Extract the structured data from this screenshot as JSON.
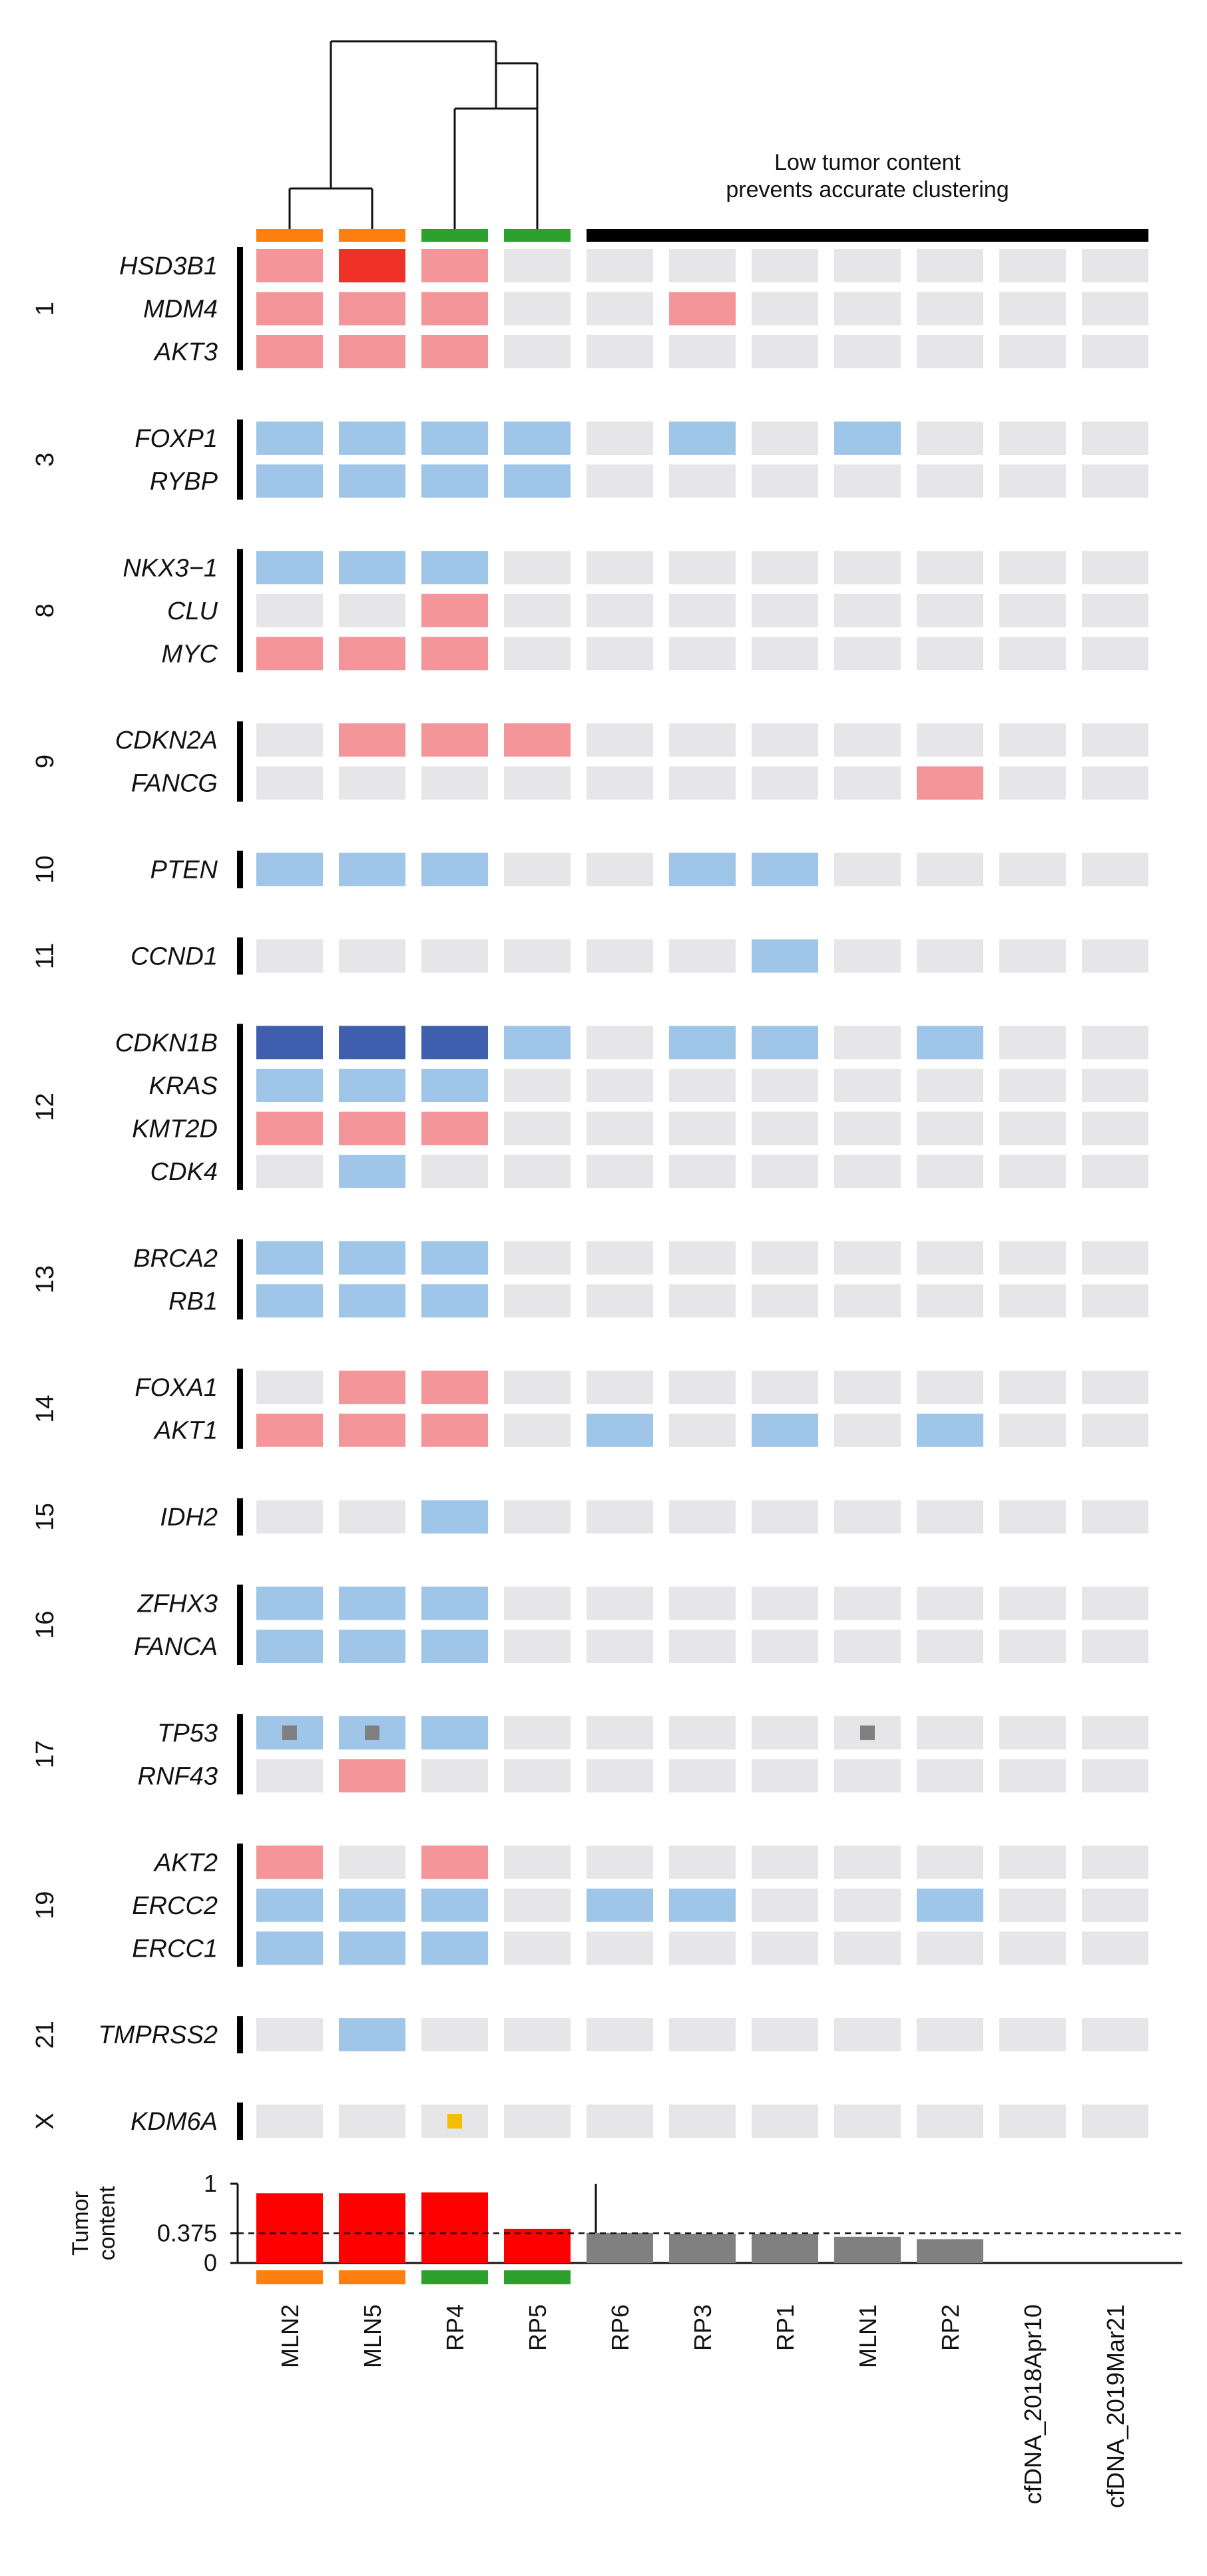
{
  "chart_data": {
    "type": "heatmap",
    "samples": [
      "MLN2",
      "MLN5",
      "RP4",
      "RP5",
      "RP6",
      "RP3",
      "RP1",
      "MLN1",
      "RP2",
      "cfDNA_2018Apr10",
      "cfDNA_2019Mar21"
    ],
    "cluster_groups": [
      {
        "samples": [
          "MLN2",
          "MLN5"
        ],
        "color": "#ff7f0e"
      },
      {
        "samples": [
          "RP4",
          "RP5"
        ],
        "color": "#2ca02c"
      }
    ],
    "low_tumor_note": "Low tumor content\nprevents accurate clustering",
    "dendrogram": "((MLN2,MLN5),(RP4,RP5))",
    "colors": {
      "none": "#e6e6e8",
      "gain": "#f4959a",
      "amplification": "#ef3128",
      "loss": "#9fc5e8",
      "deep_deletion": "#3f5fae",
      "truncating_mutation": "#808080",
      "missense_mutation": "#f7bb00",
      "tumor_content_bar": "#ff0000",
      "low_tumor_bar": "#808080"
    },
    "chromosomes": [
      {
        "chrom": "1",
        "genes": [
          {
            "gene": "HSD3B1",
            "states": [
              "gain",
              "amplification",
              "gain",
              "none",
              "none",
              "none",
              "none",
              "none",
              "none",
              "none",
              "none"
            ]
          },
          {
            "gene": "MDM4",
            "states": [
              "gain",
              "gain",
              "gain",
              "none",
              "none",
              "gain",
              "none",
              "none",
              "none",
              "none",
              "none"
            ]
          },
          {
            "gene": "AKT3",
            "states": [
              "gain",
              "gain",
              "gain",
              "none",
              "none",
              "none",
              "none",
              "none",
              "none",
              "none",
              "none"
            ]
          }
        ]
      },
      {
        "chrom": "3",
        "genes": [
          {
            "gene": "FOXP1",
            "states": [
              "loss",
              "loss",
              "loss",
              "loss",
              "none",
              "loss",
              "none",
              "loss",
              "none",
              "none",
              "none"
            ]
          },
          {
            "gene": "RYBP",
            "states": [
              "loss",
              "loss",
              "loss",
              "loss",
              "none",
              "none",
              "none",
              "none",
              "none",
              "none",
              "none"
            ]
          }
        ]
      },
      {
        "chrom": "8",
        "genes": [
          {
            "gene": "NKX3−1",
            "states": [
              "loss",
              "loss",
              "loss",
              "none",
              "none",
              "none",
              "none",
              "none",
              "none",
              "none",
              "none"
            ]
          },
          {
            "gene": "CLU",
            "states": [
              "none",
              "none",
              "gain",
              "none",
              "none",
              "none",
              "none",
              "none",
              "none",
              "none",
              "none"
            ]
          },
          {
            "gene": "MYC",
            "states": [
              "gain",
              "gain",
              "gain",
              "none",
              "none",
              "none",
              "none",
              "none",
              "none",
              "none",
              "none"
            ]
          }
        ]
      },
      {
        "chrom": "9",
        "genes": [
          {
            "gene": "CDKN2A",
            "states": [
              "none",
              "gain",
              "gain",
              "gain",
              "none",
              "none",
              "none",
              "none",
              "none",
              "none",
              "none"
            ]
          },
          {
            "gene": "FANCG",
            "states": [
              "none",
              "none",
              "none",
              "none",
              "none",
              "none",
              "none",
              "none",
              "gain",
              "none",
              "none"
            ]
          }
        ]
      },
      {
        "chrom": "10",
        "genes": [
          {
            "gene": "PTEN",
            "states": [
              "loss",
              "loss",
              "loss",
              "none",
              "none",
              "loss",
              "loss",
              "none",
              "none",
              "none",
              "none"
            ]
          }
        ]
      },
      {
        "chrom": "11",
        "genes": [
          {
            "gene": "CCND1",
            "states": [
              "none",
              "none",
              "none",
              "none",
              "none",
              "none",
              "loss",
              "none",
              "none",
              "none",
              "none"
            ]
          }
        ]
      },
      {
        "chrom": "12",
        "genes": [
          {
            "gene": "CDKN1B",
            "states": [
              "deep_deletion",
              "deep_deletion",
              "deep_deletion",
              "loss",
              "none",
              "loss",
              "loss",
              "none",
              "loss",
              "none",
              "none"
            ]
          },
          {
            "gene": "KRAS",
            "states": [
              "loss",
              "loss",
              "loss",
              "none",
              "none",
              "none",
              "none",
              "none",
              "none",
              "none",
              "none"
            ]
          },
          {
            "gene": "KMT2D",
            "states": [
              "gain",
              "gain",
              "gain",
              "none",
              "none",
              "none",
              "none",
              "none",
              "none",
              "none",
              "none"
            ]
          },
          {
            "gene": "CDK4",
            "states": [
              "none",
              "loss",
              "none",
              "none",
              "none",
              "none",
              "none",
              "none",
              "none",
              "none",
              "none"
            ]
          }
        ]
      },
      {
        "chrom": "13",
        "genes": [
          {
            "gene": "BRCA2",
            "states": [
              "loss",
              "loss",
              "loss",
              "none",
              "none",
              "none",
              "none",
              "none",
              "none",
              "none",
              "none"
            ]
          },
          {
            "gene": "RB1",
            "states": [
              "loss",
              "loss",
              "loss",
              "none",
              "none",
              "none",
              "none",
              "none",
              "none",
              "none",
              "none"
            ]
          }
        ]
      },
      {
        "chrom": "14",
        "genes": [
          {
            "gene": "FOXA1",
            "states": [
              "none",
              "gain",
              "gain",
              "none",
              "none",
              "none",
              "none",
              "none",
              "none",
              "none",
              "none"
            ]
          },
          {
            "gene": "AKT1",
            "states": [
              "gain",
              "gain",
              "gain",
              "none",
              "loss",
              "none",
              "loss",
              "none",
              "loss",
              "none",
              "none"
            ]
          }
        ]
      },
      {
        "chrom": "15",
        "genes": [
          {
            "gene": "IDH2",
            "states": [
              "none",
              "none",
              "loss",
              "none",
              "none",
              "none",
              "none",
              "none",
              "none",
              "none",
              "none"
            ]
          }
        ]
      },
      {
        "chrom": "16",
        "genes": [
          {
            "gene": "ZFHX3",
            "states": [
              "loss",
              "loss",
              "loss",
              "none",
              "none",
              "none",
              "none",
              "none",
              "none",
              "none",
              "none"
            ]
          },
          {
            "gene": "FANCA",
            "states": [
              "loss",
              "loss",
              "loss",
              "none",
              "none",
              "none",
              "none",
              "none",
              "none",
              "none",
              "none"
            ]
          }
        ]
      },
      {
        "chrom": "17",
        "genes": [
          {
            "gene": "TP53",
            "states": [
              "loss",
              "loss",
              "loss",
              "none",
              "none",
              "none",
              "none",
              "none",
              "none",
              "none",
              "none"
            ],
            "mutations": [
              {
                "sample": "MLN2",
                "type": "truncating_mutation"
              },
              {
                "sample": "MLN5",
                "type": "truncating_mutation"
              },
              {
                "sample": "MLN1",
                "type": "truncating_mutation"
              }
            ]
          },
          {
            "gene": "RNF43",
            "states": [
              "none",
              "gain",
              "none",
              "none",
              "none",
              "none",
              "none",
              "none",
              "none",
              "none",
              "none"
            ]
          }
        ]
      },
      {
        "chrom": "19",
        "genes": [
          {
            "gene": "AKT2",
            "states": [
              "gain",
              "none",
              "gain",
              "none",
              "none",
              "none",
              "none",
              "none",
              "none",
              "none",
              "none"
            ]
          },
          {
            "gene": "ERCC2",
            "states": [
              "loss",
              "loss",
              "loss",
              "none",
              "loss",
              "loss",
              "none",
              "none",
              "loss",
              "none",
              "none"
            ]
          },
          {
            "gene": "ERCC1",
            "states": [
              "loss",
              "loss",
              "loss",
              "none",
              "none",
              "none",
              "none",
              "none",
              "none",
              "none",
              "none"
            ]
          }
        ]
      },
      {
        "chrom": "21",
        "genes": [
          {
            "gene": "TMPRSS2",
            "states": [
              "none",
              "loss",
              "none",
              "none",
              "none",
              "none",
              "none",
              "none",
              "none",
              "none",
              "none"
            ]
          }
        ]
      },
      {
        "chrom": "X",
        "genes": [
          {
            "gene": "KDM6A",
            "states": [
              "none",
              "none",
              "none",
              "none",
              "none",
              "none",
              "none",
              "none",
              "none",
              "none",
              "none"
            ],
            "mutations": [
              {
                "sample": "RP4",
                "type": "missense_mutation"
              }
            ]
          }
        ]
      }
    ],
    "tumor_content": {
      "ylabel": "Tumor\ncontent",
      "yticks": [
        "1",
        "0.375",
        "0"
      ],
      "ylim": [
        0,
        1
      ],
      "threshold": 0.375,
      "values": [
        0.88,
        0.88,
        0.89,
        0.43,
        0.38,
        0.37,
        0.37,
        0.33,
        0.3,
        null,
        null
      ]
    }
  }
}
